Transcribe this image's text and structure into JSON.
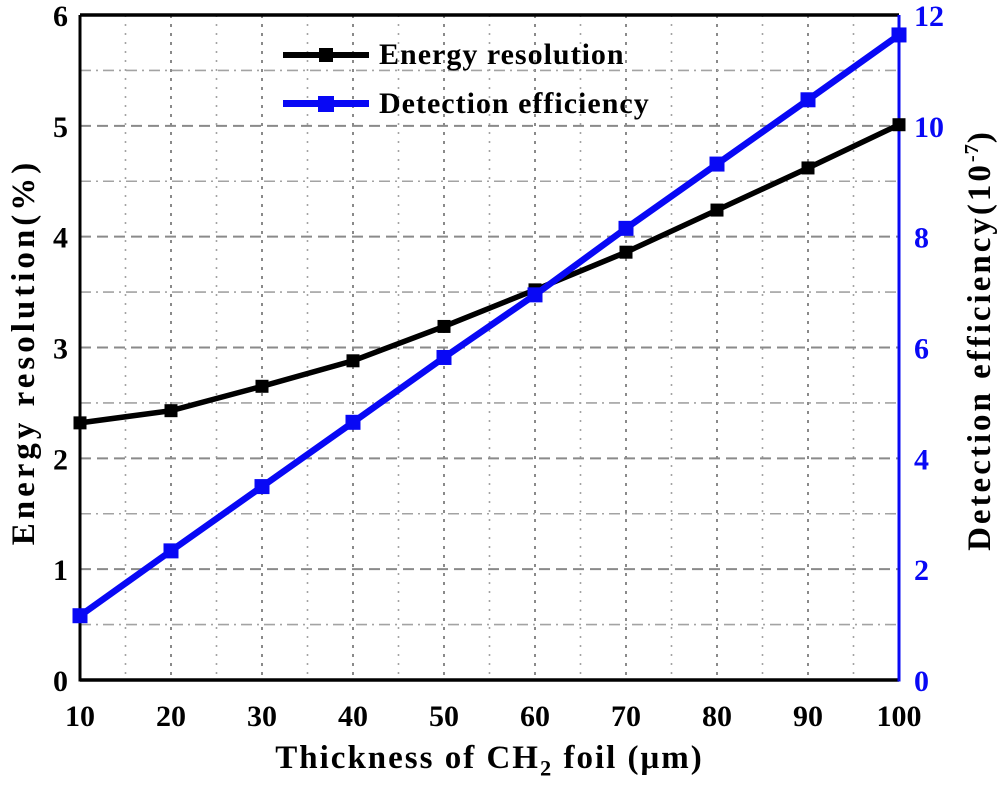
{
  "figure": {
    "background": "#ffffff"
  },
  "legend": {
    "items": [
      {
        "label": "Energy resolution",
        "color": "#000000"
      },
      {
        "label": "Detection efficiency",
        "color": "#0808f5"
      }
    ]
  },
  "chart_data": {
    "type": "line",
    "x": [
      10,
      20,
      30,
      40,
      50,
      60,
      70,
      80,
      90,
      100
    ],
    "series": [
      {
        "name": "Energy resolution",
        "axis": "left",
        "color": "#000000",
        "marker": "square",
        "values": [
          2.32,
          2.43,
          2.65,
          2.88,
          3.19,
          3.52,
          3.86,
          4.24,
          4.62,
          5.01
        ]
      },
      {
        "name": "Detection efficiency",
        "axis": "right",
        "color": "#0808f5",
        "marker": "square",
        "values": [
          1.16,
          2.33,
          3.49,
          4.65,
          5.82,
          6.95,
          8.15,
          9.31,
          10.47,
          11.64
        ]
      }
    ],
    "x_axis": {
      "label": "Thickness of CH2 foil (μm)",
      "label_parts": {
        "prefix": "Thickness of CH",
        "sub": "2",
        "suffix": " foil (μm)"
      },
      "ticks": [
        "10",
        "20",
        "30",
        "40",
        "50",
        "60",
        "70",
        "80",
        "90",
        "100"
      ],
      "range": [
        10,
        100
      ],
      "color": "#000000"
    },
    "left_axis": {
      "label": "Energy resolution(%)",
      "ticks": [
        "0",
        "1",
        "2",
        "3",
        "4",
        "5",
        "6"
      ],
      "range": [
        0,
        6
      ],
      "color": "#000000"
    },
    "right_axis": {
      "label": "Detection efficiency(10-7)",
      "label_parts": {
        "prefix": "Detection efficiency(10",
        "sup": "-7",
        "suffix": ")"
      },
      "ticks": [
        "0",
        "2",
        "4",
        "6",
        "8",
        "10",
        "12"
      ],
      "range": [
        0,
        12
      ],
      "color": "#0808f5"
    },
    "grid": {
      "major": true,
      "minor": true,
      "major_color": "#8a8a8a",
      "minor_color": "#a3a3a3"
    },
    "legend_position": "upper-left-inside"
  }
}
